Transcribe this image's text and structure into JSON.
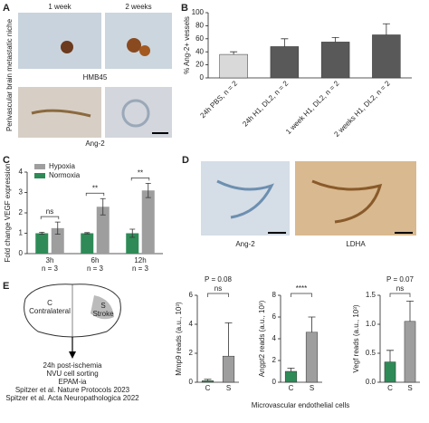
{
  "panel_a": {
    "label": "A",
    "col1": "1 week",
    "col2": "2 weeks",
    "row1": "HMB45",
    "row2": "Ang-2",
    "side": "Perivascular brain metastatic niche"
  },
  "panel_d": {
    "label": "D",
    "left": "Ang-2",
    "right": "LDHA"
  },
  "panel_e": {
    "label": "E",
    "c_short": "C",
    "c_long": "Contralateral",
    "s_short": "S",
    "s_long": "Stroke",
    "steps": [
      "24h post-ischemia",
      "NVU cell sorting",
      "EPAM-ia",
      "Spitzer et al. Nature Protocols 2023",
      "Spitzer et al. Acta Neuropathologica 2022"
    ],
    "xlabel": "Microvascular endothelial cells"
  },
  "chart_data": [
    {
      "type": "bar",
      "panel": "B",
      "ylabel": "% Ang-2+ vessels",
      "categories": [
        "24h PBS, n = 2",
        "24h H1, DL2, n = 2",
        "1 week H1, DL2, n = 2",
        "2 weeks H1, DL2, n = 2"
      ],
      "values": [
        36,
        48,
        55,
        66
      ],
      "errors": [
        4,
        12,
        7,
        17
      ],
      "colors": [
        "#d9d9d9",
        "#595959",
        "#595959",
        "#595959"
      ],
      "ylim": [
        0,
        100
      ],
      "yticks": [
        0,
        20,
        40,
        60,
        80,
        100
      ]
    },
    {
      "type": "grouped_bar",
      "panel": "C",
      "ylabel": "Fold change VEGF expression",
      "categories": [
        "3h",
        "6h",
        "12h"
      ],
      "sublabels": [
        "n = 3",
        "n = 3",
        "n = 3"
      ],
      "series": [
        {
          "name": "Normoxia",
          "color": "#2e8b57",
          "values": [
            1,
            1,
            1
          ],
          "errors": [
            0.05,
            0.03,
            0.2
          ]
        },
        {
          "name": "Hypoxia",
          "color": "#9e9e9e",
          "values": [
            1.25,
            2.3,
            3.1
          ],
          "errors": [
            0.3,
            0.4,
            0.35
          ]
        }
      ],
      "significance": [
        "ns",
        "**",
        "**"
      ],
      "ylim": [
        0,
        4
      ],
      "yticks": [
        0,
        1,
        2,
        3,
        4
      ]
    },
    {
      "type": "bar",
      "title": "P = 0.08",
      "ylabel": "Mmp9 reads (a.u., 10³)",
      "categories": [
        "C",
        "S"
      ],
      "values": [
        0.1,
        1.8
      ],
      "errors": [
        0.1,
        2.3
      ],
      "colors": [
        "#2e8b57",
        "#9e9e9e"
      ],
      "significance": "ns",
      "ylim": [
        0,
        6
      ],
      "yticks": [
        0,
        2,
        4,
        6
      ]
    },
    {
      "type": "bar",
      "ylabel": "Angpt2 reads (a.u., 10³)",
      "categories": [
        "C",
        "S"
      ],
      "values": [
        1.0,
        4.6
      ],
      "errors": [
        0.3,
        1.4
      ],
      "colors": [
        "#2e8b57",
        "#9e9e9e"
      ],
      "significance": "****",
      "ylim": [
        0,
        8
      ],
      "yticks": [
        0,
        2,
        4,
        6,
        8
      ]
    },
    {
      "type": "bar",
      "title": "P = 0.07",
      "ylabel": "Vegf reads (a.u., 10³)",
      "categories": [
        "C",
        "S"
      ],
      "values": [
        0.35,
        1.05
      ],
      "errors": [
        0.2,
        0.35
      ],
      "colors": [
        "#2e8b57",
        "#9e9e9e"
      ],
      "significance": "ns",
      "ylim": [
        0,
        1.5
      ],
      "yticks": [
        {
          "value": 0,
          "label": "0.0"
        },
        {
          "value": 0.5,
          "label": "0.5"
        },
        {
          "value": 1,
          "label": "1.0"
        },
        {
          "value": 1.5,
          "label": "1.5"
        }
      ]
    }
  ]
}
